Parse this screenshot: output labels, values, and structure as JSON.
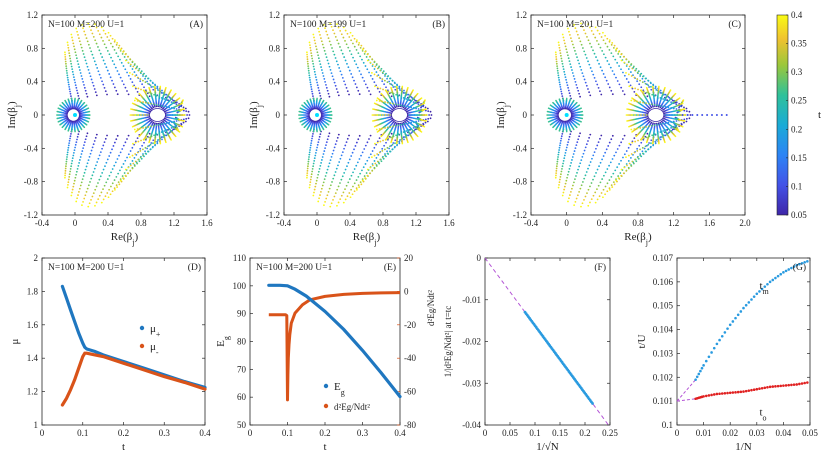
{
  "chart_data": [
    {
      "id": "A",
      "type": "scatter",
      "panel_label": "(A)",
      "title": "N=100  M=200  U=1",
      "xlabel": "Re(βj)",
      "ylabel": "Im(βj)",
      "xlim": [
        -0.4,
        1.6
      ],
      "ylim": [
        -1.2,
        1.2
      ],
      "xticks": [
        -0.4,
        0,
        0.4,
        0.8,
        1.2,
        1.6
      ],
      "yticks": [
        -1.2,
        -0.8,
        -0.4,
        0,
        0.4,
        0.8,
        1.2
      ],
      "xticklabels": [
        "-0.4",
        "0",
        "0.4",
        "0.8",
        "1.2",
        "1.6"
      ],
      "yticklabels": [
        "-1.2",
        "-0.8",
        "-0.4",
        "0",
        "0.4",
        "0.8",
        "1.2"
      ],
      "tail": false
    },
    {
      "id": "B",
      "type": "scatter",
      "panel_label": "(B)",
      "title": "N=100  M=199  U=1",
      "xlabel": "Re(βj)",
      "ylabel": "Im(βj)",
      "xlim": [
        -0.4,
        1.6
      ],
      "ylim": [
        -1.2,
        1.2
      ],
      "xticks": [
        -0.4,
        0,
        0.4,
        0.8,
        1.2,
        1.6
      ],
      "yticks": [
        -1.2,
        -0.8,
        -0.4,
        0,
        0.4,
        0.8,
        1.2
      ],
      "xticklabels": [
        "-0.4",
        "0",
        "0.4",
        "0.8",
        "1.2",
        "1.6"
      ],
      "yticklabels": [
        "-1.2",
        "-0.8",
        "-0.4",
        "0",
        "0.4",
        "0.8",
        "1.2"
      ],
      "tail": false
    },
    {
      "id": "C",
      "type": "scatter",
      "panel_label": "(C)",
      "title": "N=100  M=201  U=1",
      "xlabel": "Re(βj)",
      "ylabel": "Im(βj)",
      "xlim": [
        -0.4,
        2.0
      ],
      "ylim": [
        -1.2,
        1.2
      ],
      "xticks": [
        -0.4,
        0,
        0.4,
        0.8,
        1.2,
        1.6,
        2.0
      ],
      "yticks": [
        -1.2,
        -0.8,
        -0.4,
        0,
        0.4,
        0.8,
        1.2
      ],
      "xticklabels": [
        "-0.4",
        "0",
        "0.4",
        "0.8",
        "1.2",
        "1.6",
        "2.0"
      ],
      "yticklabels": [
        "-1.2",
        "-0.8",
        "-0.4",
        "0",
        "0.4",
        "0.8",
        "1.2"
      ],
      "tail": true,
      "colorbar": {
        "label": "t",
        "range": [
          0.05,
          0.4
        ],
        "ticks": [
          0.05,
          0.1,
          0.15,
          0.2,
          0.25,
          0.3,
          0.35,
          0.4
        ],
        "ticklabels": [
          "0.05",
          "0.1",
          "0.15",
          "0.2",
          "0.25",
          "0.3",
          "0.35",
          "0.4"
        ]
      }
    },
    {
      "id": "D",
      "type": "line",
      "panel_label": "(D)",
      "title": "N=100  M=200  U=1",
      "xlabel": "t",
      "ylabel": "μ",
      "xlim": [
        0,
        0.4
      ],
      "ylim": [
        1,
        2
      ],
      "xticks": [
        0,
        0.1,
        0.2,
        0.3,
        0.4
      ],
      "yticks": [
        1,
        1.2,
        1.4,
        1.6,
        1.8,
        2
      ],
      "xticklabels": [
        "0",
        "0.1",
        "0.2",
        "0.3",
        "0.4"
      ],
      "yticklabels": [
        "1",
        "1.2",
        "1.4",
        "1.6",
        "1.8",
        "2"
      ],
      "series": [
        {
          "name": "μ+",
          "label_main": "μ",
          "label_sub": "+",
          "color": "#1f77c0",
          "x": [
            0.05,
            0.06,
            0.07,
            0.08,
            0.09,
            0.1,
            0.105,
            0.11,
            0.13,
            0.15,
            0.2,
            0.25,
            0.3,
            0.35,
            0.4
          ],
          "y": [
            1.83,
            1.76,
            1.69,
            1.62,
            1.55,
            1.49,
            1.465,
            1.455,
            1.44,
            1.42,
            1.38,
            1.34,
            1.3,
            1.26,
            1.225
          ]
        },
        {
          "name": "μ-",
          "label_main": "μ",
          "label_sub": "-",
          "color": "#d95319",
          "x": [
            0.05,
            0.06,
            0.07,
            0.08,
            0.09,
            0.1,
            0.105,
            0.11,
            0.13,
            0.15,
            0.2,
            0.25,
            0.3,
            0.35,
            0.4
          ],
          "y": [
            1.12,
            1.16,
            1.21,
            1.27,
            1.34,
            1.41,
            1.43,
            1.43,
            1.42,
            1.41,
            1.37,
            1.33,
            1.29,
            1.255,
            1.215
          ]
        }
      ]
    },
    {
      "id": "E",
      "type": "line",
      "panel_label": "(E)",
      "title": "N=100  M=200  U=1",
      "xlabel": "t",
      "ylabel": "Eg",
      "y2label": "d²Eg/Ndt²",
      "xlim": [
        0,
        0.4
      ],
      "ylim": [
        50,
        110
      ],
      "y2lim": [
        -80,
        20
      ],
      "xticks": [
        0,
        0.1,
        0.2,
        0.3,
        0.4
      ],
      "yticks": [
        50,
        60,
        70,
        80,
        90,
        100,
        110
      ],
      "y2ticks": [
        -80,
        -60,
        -40,
        -20,
        0,
        20
      ],
      "xticklabels": [
        "0",
        "0.1",
        "0.2",
        "0.3",
        "0.4"
      ],
      "yticklabels": [
        "50",
        "60",
        "70",
        "80",
        "90",
        "100",
        "110"
      ],
      "y2ticklabels": [
        "-80",
        "-60",
        "-40",
        "-20",
        "0",
        "20"
      ],
      "series": [
        {
          "name": "Eg",
          "label_main": "E",
          "label_sub": "g",
          "color": "#1f77c0",
          "axis": "left",
          "x": [
            0.05,
            0.08,
            0.1,
            0.12,
            0.15,
            0.2,
            0.25,
            0.3,
            0.35,
            0.4
          ],
          "y": [
            100.2,
            100.2,
            100.0,
            98.8,
            96.3,
            90.8,
            84.3,
            76.8,
            68.7,
            60.2
          ]
        },
        {
          "name": "d2Eg/Ndt2",
          "label_main": "d²Eg/Ndt²",
          "label_sub": "",
          "color": "#d95319",
          "axis": "right",
          "x": [
            0.05,
            0.09,
            0.095,
            0.098,
            0.1,
            0.101,
            0.102,
            0.104,
            0.106,
            0.11,
            0.12,
            0.14,
            0.16,
            0.2,
            0.25,
            0.3,
            0.35,
            0.4
          ],
          "y": [
            -14,
            -14,
            -14,
            -14.5,
            -65,
            -50,
            -40,
            -32,
            -26,
            -19,
            -13,
            -8,
            -5,
            -3,
            -1.8,
            -1.2,
            -0.9,
            -0.7
          ]
        }
      ]
    },
    {
      "id": "F",
      "type": "scatter",
      "panel_label": "(F)",
      "title": "",
      "xlabel": "1/√N",
      "ylabel": "1/|d²Eg/Ndt²| at t=tc",
      "xlim": [
        0,
        0.25
      ],
      "ylim": [
        -0.04,
        0
      ],
      "xticks": [
        0,
        0.05,
        0.1,
        0.15,
        0.2,
        0.25
      ],
      "yticks": [
        -0.04,
        -0.03,
        -0.02,
        -0.01,
        0
      ],
      "xticklabels": [
        "0",
        "0.05",
        "0.1",
        "0.15",
        "0.2",
        "0.25"
      ],
      "yticklabels": [
        "-0.04",
        "-0.03",
        "-0.02",
        "-0.01",
        "0"
      ],
      "fit": {
        "x": [
          0,
          0.25
        ],
        "y": [
          0,
          -0.0405
        ],
        "color": "#b455d6"
      },
      "points": {
        "xrange": [
          0.08,
          0.215
        ],
        "slope": -0.162,
        "color": "#2a9be0"
      }
    },
    {
      "id": "G",
      "type": "scatter",
      "panel_label": "(G)",
      "title": "",
      "xlabel": "1/N",
      "ylabel": "t/U",
      "xlim": [
        0,
        0.05
      ],
      "ylim": [
        0.1,
        0.107
      ],
      "xticks": [
        0,
        0.01,
        0.02,
        0.03,
        0.04,
        0.05
      ],
      "yticks": [
        0.1,
        0.101,
        0.102,
        0.103,
        0.104,
        0.105,
        0.106,
        0.107
      ],
      "xticklabels": [
        "0",
        "0.01",
        "0.02",
        "0.03",
        "0.04",
        "0.05"
      ],
      "yticklabels": [
        "0.1",
        "0.101",
        "0.102",
        "0.103",
        "0.104",
        "0.105",
        "0.106",
        "0.107"
      ],
      "series": [
        {
          "name": "tm",
          "label_main": "t",
          "label_sub": "m",
          "color": "#2a9be0",
          "x": [
            0.007,
            0.01,
            0.015,
            0.02,
            0.025,
            0.03,
            0.035,
            0.04,
            0.045,
            0.05
          ],
          "y": [
            0.1019,
            0.1025,
            0.1034,
            0.1042,
            0.1049,
            0.1055,
            0.106,
            0.1064,
            0.1067,
            0.1069
          ]
        },
        {
          "name": "to",
          "label_main": "t",
          "label_sub": "o",
          "color": "#e02020",
          "x": [
            0.007,
            0.01,
            0.015,
            0.02,
            0.025,
            0.03,
            0.035,
            0.04,
            0.045,
            0.05
          ],
          "y": [
            0.1011,
            0.1012,
            0.1013,
            0.10135,
            0.1014,
            0.1015,
            0.1016,
            0.10165,
            0.1017,
            0.1018
          ]
        }
      ],
      "fits": [
        {
          "x": [
            0,
            0.007
          ],
          "y": [
            0.101,
            0.1019
          ],
          "color": "#b455d6"
        },
        {
          "x": [
            0,
            0.007
          ],
          "y": [
            0.101,
            0.1011
          ],
          "color": "#b455d6"
        }
      ]
    }
  ]
}
